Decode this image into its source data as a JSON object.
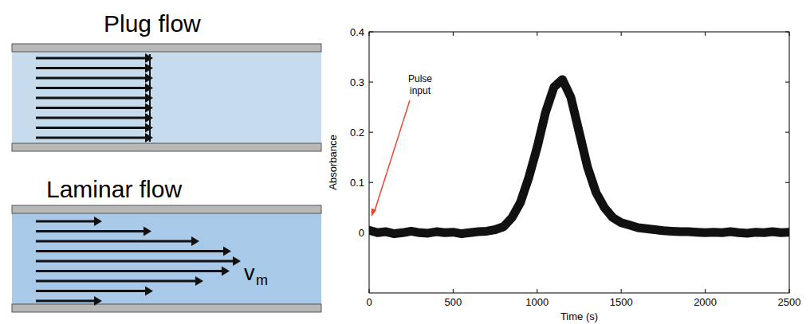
{
  "chart_data": {
    "type": "line",
    "x_label": "Time (s)",
    "y_label": "Absorbance",
    "x": [
      0,
      50,
      100,
      150,
      200,
      250,
      300,
      350,
      400,
      450,
      500,
      550,
      600,
      650,
      700,
      750,
      800,
      850,
      900,
      950,
      1000,
      1050,
      1100,
      1150,
      1200,
      1250,
      1300,
      1350,
      1400,
      1450,
      1500,
      1550,
      1600,
      1650,
      1700,
      1750,
      1800,
      1850,
      1900,
      1950,
      2000,
      2050,
      2100,
      2150,
      2200,
      2250,
      2300,
      2350,
      2400,
      2450,
      2500
    ],
    "series": [
      {
        "name": "Absorbance",
        "color": "#111111",
        "values": [
          0.005,
          0,
          0.002,
          -0.002,
          0,
          0.003,
          0,
          -0.001,
          0.002,
          0,
          0.001,
          -0.002,
          0,
          0.002,
          0.003,
          0.006,
          0.012,
          0.03,
          0.06,
          0.11,
          0.17,
          0.24,
          0.29,
          0.305,
          0.27,
          0.2,
          0.13,
          0.08,
          0.05,
          0.03,
          0.02,
          0.015,
          0.01,
          0.008,
          0.006,
          0.004,
          0.003,
          0.002,
          0.002,
          0.001,
          0,
          0.001,
          0,
          0.002,
          0,
          -0.001,
          0.001,
          0,
          0.002,
          0,
          0.001
        ]
      }
    ],
    "xlim": [
      0,
      2500
    ],
    "xticks": [
      0,
      500,
      1000,
      1500,
      2000,
      2500
    ],
    "ylim": [
      -0.12,
      0.4
    ],
    "yticks": [
      0,
      0.1,
      0.2,
      0.3,
      0.4
    ],
    "grid": false,
    "annotations": [
      {
        "text": "Pulse input",
        "x": 0,
        "y": 0.02,
        "color": "#e8452c"
      }
    ]
  },
  "diagrams": [
    {
      "title": "Plug flow",
      "color": "#c6dcec"
    },
    {
      "title": "Laminar flow",
      "color": "#a9c9e8",
      "label": "v",
      "label_subscript": "m"
    }
  ]
}
